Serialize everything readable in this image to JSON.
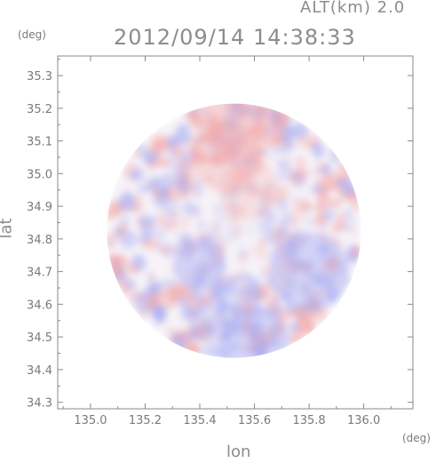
{
  "header": {
    "altitude": "ALT(km) 2.0",
    "timestamp": "2012/09/14 14:38:33"
  },
  "axes": {
    "y_unit": "(deg)",
    "x_unit": "(deg)",
    "y_title": "lat",
    "x_title": "lon"
  },
  "chart_data": {
    "type": "heatmap",
    "xlabel": "lon",
    "ylabel": "lat",
    "xlim": [
      134.88,
      136.18
    ],
    "ylim": [
      34.28,
      35.36
    ],
    "x_ticks": [
      "135.0",
      "135.2",
      "135.4",
      "135.6",
      "135.8",
      "136.0"
    ],
    "y_ticks": [
      "34.3",
      "34.4",
      "34.5",
      "34.6",
      "34.7",
      "34.8",
      "34.9",
      "35.0",
      "35.1",
      "35.2",
      "35.3"
    ],
    "x_tick_values": [
      135.0,
      135.2,
      135.4,
      135.6,
      135.8,
      136.0
    ],
    "y_tick_values": [
      34.3,
      34.4,
      34.5,
      34.6,
      34.7,
      34.8,
      34.9,
      35.0,
      35.1,
      35.2,
      35.3
    ],
    "center": {
      "lon": 135.525,
      "lat": 34.825
    },
    "radius_deg": 0.465,
    "colors": {
      "positive": "#f3a8a8",
      "negative": "#a9aef3",
      "neutral": "#f6f3f8",
      "axis": "#8a8a8a"
    }
  }
}
